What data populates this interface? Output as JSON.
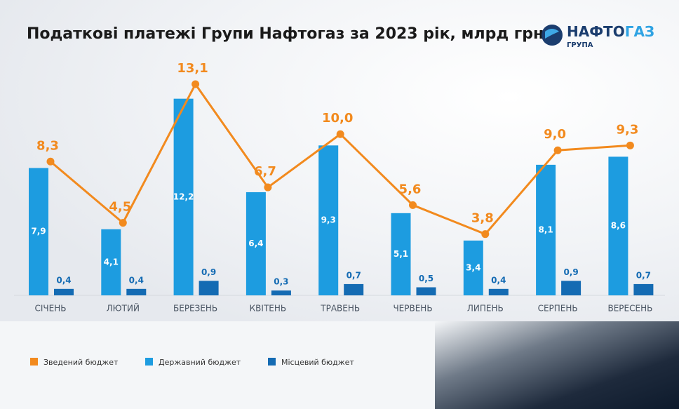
{
  "logo": {
    "parts": [
      "НАФТО",
      "ГАЗ"
    ],
    "subtitle": "ГРУПА"
  },
  "chart_data": {
    "type": "bar",
    "title": "Податкові платежі Групи Нафтогаз за 2023 рік, млрд грн",
    "categories": [
      "СІЧЕНЬ",
      "ЛЮТИЙ",
      "БЕРЕЗЕНЬ",
      "КВІТЕНЬ",
      "ТРАВЕНЬ",
      "ЧЕРВЕНЬ",
      "ЛИПЕНЬ",
      "СЕРПЕНЬ",
      "ВЕРЕСЕНЬ"
    ],
    "series": [
      {
        "name": "Зведений бюджет",
        "type": "line",
        "color": "#f28a1e",
        "values": [
          8.3,
          4.5,
          13.1,
          6.7,
          10.0,
          5.6,
          3.8,
          9.0,
          9.3
        ],
        "value_labels": [
          "8,3",
          "4,5",
          "13,1",
          "6,7",
          "10,0",
          "5,6",
          "3,8",
          "9,0",
          "9,3"
        ]
      },
      {
        "name": "Державний бюджет",
        "type": "bar",
        "color": "#1d9ce0",
        "values": [
          7.9,
          4.1,
          12.2,
          6.4,
          9.3,
          5.1,
          3.4,
          8.1,
          8.6
        ],
        "value_labels": [
          "7,9",
          "4,1",
          "12,2",
          "6,4",
          "9,3",
          "5,1",
          "3,4",
          "8,1",
          "8,6"
        ]
      },
      {
        "name": "Місцевий бюджет",
        "type": "bar",
        "color": "#146bb3",
        "values": [
          0.4,
          0.4,
          0.9,
          0.3,
          0.7,
          0.5,
          0.4,
          0.9,
          0.7
        ],
        "value_labels": [
          "0,4",
          "0,4",
          "0,9",
          "0,3",
          "0,7",
          "0,5",
          "0,4",
          "0,9",
          "0,7"
        ]
      }
    ]
  }
}
